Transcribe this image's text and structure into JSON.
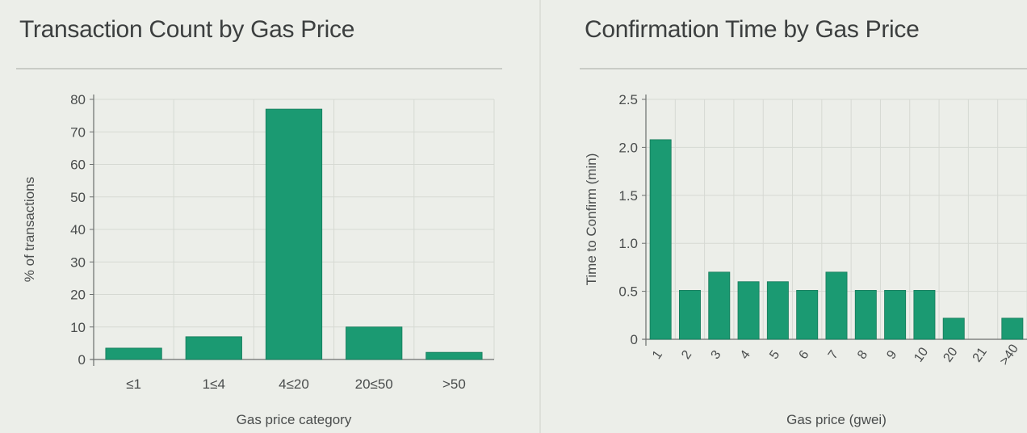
{
  "colors": {
    "bar": "#1b9a72",
    "grid": "#d6d9d3",
    "axis": "#6b6f6e",
    "text": "#4a4d4d"
  },
  "chart_data": [
    {
      "type": "bar",
      "title": "Transaction Count by Gas Price",
      "xlabel": "Gas price category",
      "ylabel": "% of transactions",
      "categories": [
        "≤1",
        "1≤4",
        "4≤20",
        "20≤50",
        ">50"
      ],
      "values": [
        3.5,
        7,
        77,
        10,
        2.2
      ],
      "ylim": [
        0,
        80
      ],
      "yticks": [
        "0",
        "10",
        "20",
        "30",
        "40",
        "50",
        "60",
        "70",
        "80"
      ],
      "grid": true
    },
    {
      "type": "bar",
      "title": "Confirmation Time by Gas Price",
      "xlabel": "Gas price (gwei)",
      "ylabel": "Time to Confirm (min)",
      "categories": [
        "1",
        "2",
        "3",
        "4",
        "5",
        "6",
        "7",
        "8",
        "9",
        "10",
        "20",
        "21",
        ">40"
      ],
      "values": [
        2.08,
        0.51,
        0.7,
        0.6,
        0.6,
        0.51,
        0.7,
        0.51,
        0.51,
        0.51,
        0.22,
        0,
        0.22
      ],
      "ylim": [
        0,
        2.5
      ],
      "yticks": [
        "0",
        "0.5",
        "1.0",
        "1.5",
        "2.0",
        "2.5"
      ],
      "grid": true
    }
  ]
}
